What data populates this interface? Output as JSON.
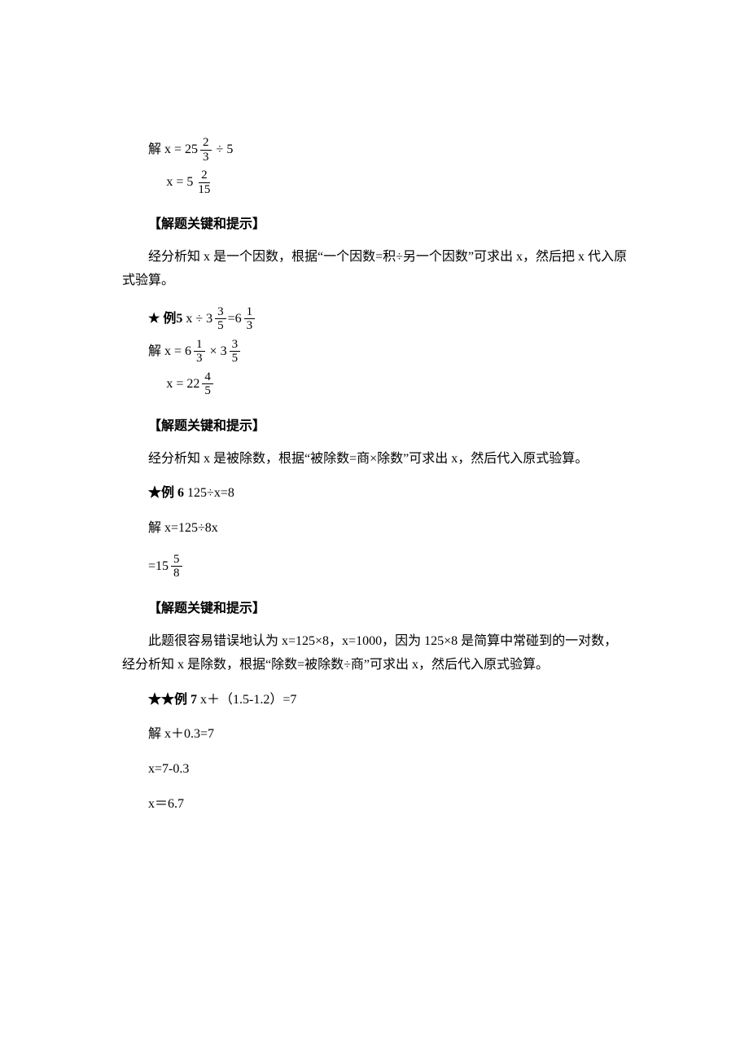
{
  "solution_prefix": "解 ",
  "hint_heading": "【解题关键和提示】",
  "eq_pre_1a_prefix": "解 x = ",
  "eq_pre_1a_whole": "25",
  "eq_pre_1a_num": "2",
  "eq_pre_1a_den": "3",
  "eq_pre_1a_suffix_op": "÷",
  "eq_pre_1a_suffix_val": "5",
  "eq_pre_1b_prefix": "x = ",
  "eq_pre_1b_whole": "5",
  "eq_pre_1b_num": "2",
  "eq_pre_1b_den": "15",
  "hint1_text": "经分析知 x 是一个因数，根据“一个因数=积÷另一个因数”可求出 x，然后把 x 代入原式验算。",
  "ex5_label_star": "★",
  "ex5_label": "例5",
  "ex5_lhs_x": "x",
  "ex5_lhs_op": "÷",
  "ex5_lhs_whole": "3",
  "ex5_lhs_num": "3",
  "ex5_lhs_den": "5",
  "ex5_eq": " = ",
  "ex5_rhs_whole": "6",
  "ex5_rhs_num": "1",
  "ex5_rhs_den": "3",
  "ex5_s1_prefix": "解 x = ",
  "ex5_s1_a_whole": "6",
  "ex5_s1_a_num": "1",
  "ex5_s1_a_den": "3",
  "ex5_s1_op": "×",
  "ex5_s1_b_whole": "3",
  "ex5_s1_b_num": "3",
  "ex5_s1_b_den": "5",
  "ex5_s2_prefix": "x = ",
  "ex5_s2_whole": "22",
  "ex5_s2_num": "4",
  "ex5_s2_den": "5",
  "hint2_text": "经分析知 x 是被除数，根据“被除数=商×除数”可求出 x，然后代入原式验算。",
  "ex6_label_star": "★",
  "ex6_label": "例 6",
  "ex6_eqn": "  125÷x=8",
  "ex6_s1": "解  x=125÷8x",
  "ex6_s2_prefix": "= ",
  "ex6_s2_whole": "15",
  "ex6_s2_num": "5",
  "ex6_s2_den": "8",
  "hint3_text": "此题很容易错误地认为 x=125×8，x=1000，因为 125×8 是简算中常碰到的一对数，经分析知 x 是除数，根据“除数=被除数÷商”可求出 x，然后代入原式验算。",
  "ex7_label_star": "★★",
  "ex7_label": "例 7",
  "ex7_eqn": " x＋（1.5-1.2）=7",
  "ex7_s1": "解  x＋0.3=7",
  "ex7_s2": "x=7-0.3",
  "ex7_s3": "x＝6.7",
  "colors": {
    "text": "#000000",
    "background": "#ffffff"
  },
  "fontsizes": {
    "body": 16,
    "fraction": 15
  }
}
